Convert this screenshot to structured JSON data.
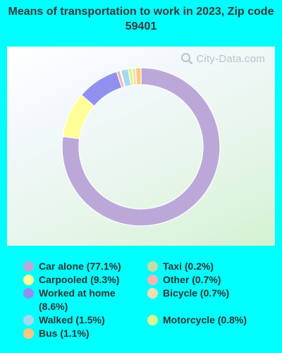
{
  "chart_data": {
    "type": "pie",
    "title": "Means of transportation to work in 2023, Zip code 59401",
    "donut": true,
    "slices": [
      {
        "label": "Car alone (77.1%)",
        "value": 77.1,
        "color": "#bca8d8"
      },
      {
        "label": "Carpooled (9.3%)",
        "value": 9.3,
        "color": "#ffff99"
      },
      {
        "label": "Worked at home (8.6%)",
        "value": 8.6,
        "color": "#9090ee"
      },
      {
        "label": "Other (0.7%)",
        "value": 0.7,
        "color": "#f4b4b4"
      },
      {
        "label": "Taxi (0.2%)",
        "value": 0.2,
        "color": "#c4dca8"
      },
      {
        "label": "Walked (1.5%)",
        "value": 1.5,
        "color": "#a8d8f0"
      },
      {
        "label": "Motorcycle (0.8%)",
        "value": 0.8,
        "color": "#d8f890"
      },
      {
        "label": "Bicycle (0.7%)",
        "value": 0.7,
        "color": "#fcdcb0"
      },
      {
        "label": "Bus (1.1%)",
        "value": 1.1,
        "color": "#fcc880"
      }
    ],
    "legend_placement": "bottom"
  },
  "watermark": "City-Data.com"
}
